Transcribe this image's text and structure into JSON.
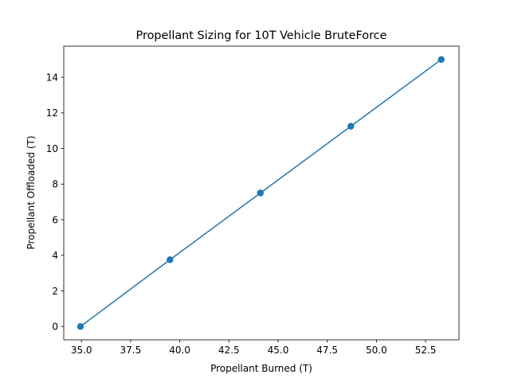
{
  "chart_data": {
    "type": "line",
    "title": "Propellant Sizing for 10T Vehicle  BruteForce",
    "xlabel": "Propellant Burned (T)",
    "ylabel": "Propellant Offloaded (T)",
    "xlim": [
      34.1,
      54.2
    ],
    "ylim": [
      -0.75,
      15.75
    ],
    "xticks": [
      35.0,
      37.5,
      40.0,
      42.5,
      45.0,
      47.5,
      50.0,
      52.5
    ],
    "xtick_labels": [
      "35.0",
      "37.5",
      "40.0",
      "42.5",
      "45.0",
      "47.5",
      "50.0",
      "52.5"
    ],
    "yticks": [
      0,
      2,
      4,
      6,
      8,
      10,
      12,
      14
    ],
    "ytick_labels": [
      "0",
      "2",
      "4",
      "6",
      "8",
      "10",
      "12",
      "14"
    ],
    "grid": false,
    "series": [
      {
        "color": "#1f77b4",
        "marker": "circle",
        "x": [
          34.95,
          39.5,
          44.1,
          48.7,
          53.3
        ],
        "y": [
          0.0,
          3.75,
          7.5,
          11.25,
          15.0
        ]
      }
    ]
  }
}
